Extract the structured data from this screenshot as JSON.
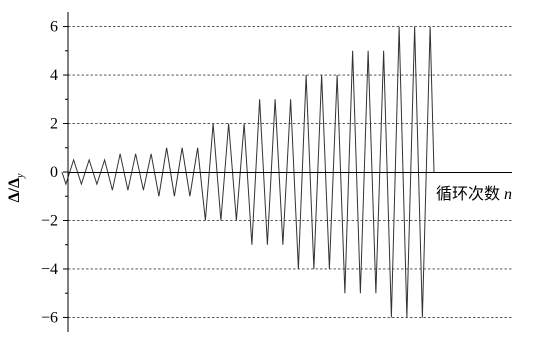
{
  "chart_data": {
    "type": "line",
    "ylabel": "Δ/Δ",
    "ylabel_sub": "y",
    "xlabel": "循环次数",
    "xlabel_var": "n",
    "ylim": [
      -6.6,
      6.6
    ],
    "yticks": [
      -6,
      -4,
      -2,
      0,
      2,
      4,
      6
    ],
    "ytick_labels": [
      "−6",
      "−4",
      "−2",
      "0",
      "2",
      "4",
      "6"
    ],
    "grid": "horizontal-dashed",
    "series": [
      {
        "blocks": [
          {
            "amplitude": 0.5,
            "cycles": 3
          },
          {
            "amplitude": 0.75,
            "cycles": 3
          },
          {
            "amplitude": 1.0,
            "cycles": 3
          },
          {
            "amplitude": 2.0,
            "cycles": 3
          },
          {
            "amplitude": 3.0,
            "cycles": 3
          },
          {
            "amplitude": 4.0,
            "cycles": 3
          },
          {
            "amplitude": 5.0,
            "cycles": 3
          },
          {
            "amplitude": 6.0,
            "cycles": 3
          }
        ]
      }
    ]
  }
}
